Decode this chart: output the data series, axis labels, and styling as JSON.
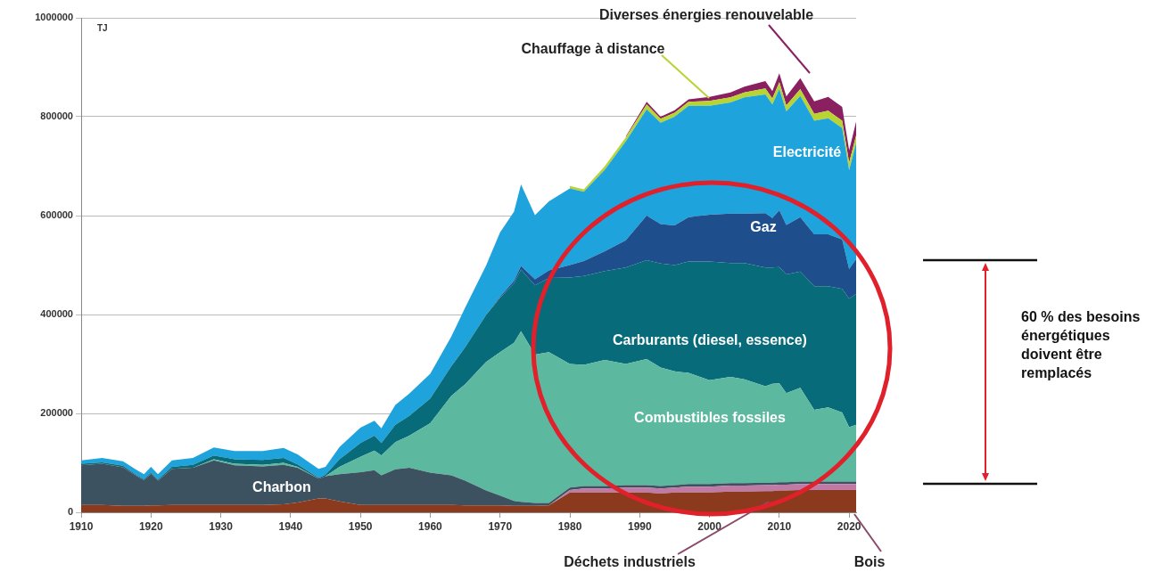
{
  "chart_data": {
    "type": "area",
    "stacked": true,
    "ylabel": "TJ",
    "legend": false,
    "grid": "y",
    "x": [
      1910,
      1913,
      1916,
      1918,
      1919,
      1920,
      1921,
      1923,
      1926,
      1929,
      1932,
      1936,
      1939,
      1941,
      1944,
      1945,
      1947,
      1950,
      1952,
      1953,
      1955,
      1957,
      1960,
      1963,
      1965,
      1968,
      1970,
      1972,
      1973,
      1975,
      1977,
      1980,
      1982,
      1985,
      1988,
      1991,
      1993,
      1995,
      1997,
      2000,
      2003,
      2005,
      2008,
      2009,
      2010,
      2011,
      2013,
      2015,
      2017,
      2019,
      2020,
      2021
    ],
    "xlim": [
      1910,
      2021
    ],
    "xticks": [
      1910,
      1920,
      1930,
      1940,
      1950,
      1960,
      1970,
      1980,
      1990,
      2000,
      2010,
      2020
    ],
    "ylim": [
      0,
      1000000
    ],
    "yticks": [
      0,
      200000,
      400000,
      600000,
      800000,
      1000000
    ],
    "series": [
      {
        "name": "Bois",
        "color": "#8b3a1e",
        "values": [
          15000,
          15000,
          13000,
          13000,
          13000,
          14000,
          14000,
          15000,
          15000,
          15000,
          15000,
          15000,
          16000,
          20000,
          28000,
          28000,
          22000,
          15000,
          15000,
          15000,
          15000,
          15000,
          15000,
          15000,
          14000,
          14000,
          14000,
          13000,
          13000,
          13000,
          14000,
          40000,
          40000,
          40000,
          40000,
          40000,
          38000,
          40000,
          40000,
          40000,
          42000,
          42000,
          43000,
          43000,
          44000,
          44000,
          45000,
          45000,
          45000,
          45000,
          45000,
          45000
        ]
      },
      {
        "name": "Déchets industriels",
        "color": "#c07aa6",
        "values": [
          0,
          0,
          0,
          0,
          0,
          0,
          0,
          0,
          0,
          0,
          0,
          0,
          0,
          0,
          0,
          0,
          0,
          0,
          0,
          0,
          0,
          0,
          0,
          0,
          0,
          0,
          0,
          0,
          0,
          0,
          0,
          5000,
          8000,
          8000,
          10000,
          10000,
          10000,
          10000,
          12000,
          12000,
          12000,
          12000,
          12000,
          12000,
          12000,
          12000,
          12000,
          12000,
          12000,
          12000,
          12000,
          12000
        ]
      },
      {
        "name": "Charbon",
        "color": "#3d5260",
        "values": [
          80000,
          83000,
          78000,
          60000,
          52000,
          64000,
          50000,
          73000,
          75000,
          90000,
          80000,
          78000,
          80000,
          70000,
          40000,
          45000,
          55000,
          66000,
          70000,
          60000,
          72000,
          75000,
          65000,
          60000,
          50000,
          30000,
          20000,
          10000,
          8000,
          6000,
          5000,
          5000,
          5000,
          5000,
          5000,
          5000,
          5000,
          5000,
          5000,
          5000,
          5000,
          5000,
          5000,
          5000,
          5000,
          5000,
          5000,
          5000,
          5000,
          5000,
          5000,
          5000
        ]
      },
      {
        "name": "Combustibles fossiles",
        "color": "#5cb89e",
        "values": [
          0,
          0,
          0,
          0,
          0,
          0,
          0,
          0,
          0,
          2000,
          3000,
          3000,
          4000,
          2000,
          0,
          0,
          15000,
          31000,
          40000,
          40000,
          55000,
          65000,
          100000,
          160000,
          195000,
          260000,
          290000,
          320000,
          345000,
          300000,
          305000,
          250000,
          245000,
          255000,
          245000,
          255000,
          240000,
          230000,
          225000,
          210000,
          215000,
          210000,
          195000,
          200000,
          200000,
          180000,
          190000,
          145000,
          150000,
          140000,
          110000,
          115000
        ]
      },
      {
        "name": "Carburants (diesel, essence)",
        "color": "#086b7a",
        "values": [
          3000,
          3000,
          3000,
          2000,
          2000,
          2000,
          2000,
          4000,
          6000,
          8000,
          9000,
          10000,
          10000,
          5000,
          2000,
          3000,
          15000,
          28000,
          30000,
          25000,
          35000,
          40000,
          50000,
          60000,
          75000,
          95000,
          110000,
          120000,
          125000,
          140000,
          150000,
          175000,
          180000,
          180000,
          195000,
          200000,
          210000,
          215000,
          225000,
          240000,
          230000,
          235000,
          240000,
          235000,
          235000,
          240000,
          235000,
          250000,
          245000,
          250000,
          260000,
          265000
        ]
      },
      {
        "name": "Gaz",
        "color": "#1f4e8c",
        "values": [
          0,
          0,
          0,
          0,
          0,
          0,
          0,
          0,
          0,
          0,
          0,
          0,
          0,
          0,
          0,
          0,
          0,
          0,
          0,
          0,
          0,
          0,
          0,
          0,
          0,
          0,
          2000,
          5000,
          7000,
          12000,
          15000,
          25000,
          30000,
          40000,
          55000,
          90000,
          80000,
          80000,
          90000,
          95000,
          100000,
          100000,
          110000,
          100000,
          115000,
          100000,
          110000,
          105000,
          105000,
          100000,
          60000,
          70000
        ]
      },
      {
        "name": "Electricité",
        "color": "#1ea3dc",
        "values": [
          7000,
          9000,
          9000,
          10000,
          10000,
          12000,
          11000,
          13000,
          14000,
          16000,
          17000,
          18000,
          20000,
          20000,
          18000,
          16000,
          25000,
          31000,
          30000,
          30000,
          40000,
          45000,
          50000,
          60000,
          80000,
          100000,
          130000,
          140000,
          165000,
          130000,
          140000,
          155000,
          140000,
          165000,
          200000,
          215000,
          205000,
          220000,
          225000,
          220000,
          225000,
          235000,
          240000,
          230000,
          245000,
          230000,
          245000,
          230000,
          235000,
          225000,
          200000,
          235000
        ]
      },
      {
        "name": "Chauffage à distance",
        "color": "#b8d432",
        "values": [
          null,
          null,
          null,
          null,
          null,
          null,
          null,
          null,
          null,
          null,
          null,
          null,
          null,
          null,
          null,
          null,
          null,
          null,
          null,
          null,
          null,
          null,
          null,
          null,
          null,
          null,
          null,
          null,
          null,
          null,
          null,
          5000,
          5000,
          7000,
          8000,
          10000,
          8000,
          8000,
          8000,
          10000,
          10000,
          10000,
          12000,
          12000,
          14000,
          12000,
          14000,
          14000,
          15000,
          15000,
          15000,
          15000
        ]
      },
      {
        "name": "Diverses énergies renouvelable",
        "color": "#8b2060",
        "values": [
          null,
          null,
          null,
          null,
          null,
          null,
          null,
          null,
          null,
          null,
          null,
          null,
          null,
          null,
          null,
          null,
          null,
          null,
          null,
          null,
          null,
          null,
          null,
          null,
          null,
          null,
          null,
          null,
          null,
          null,
          null,
          null,
          null,
          null,
          2000,
          5000,
          4000,
          5000,
          5000,
          8000,
          10000,
          12000,
          15000,
          15000,
          18000,
          18000,
          22000,
          25000,
          28000,
          28000,
          25000,
          28000
        ]
      }
    ],
    "annotations": [
      "60 % des besoins énergétiques doivent être remplacés"
    ]
  }
}
